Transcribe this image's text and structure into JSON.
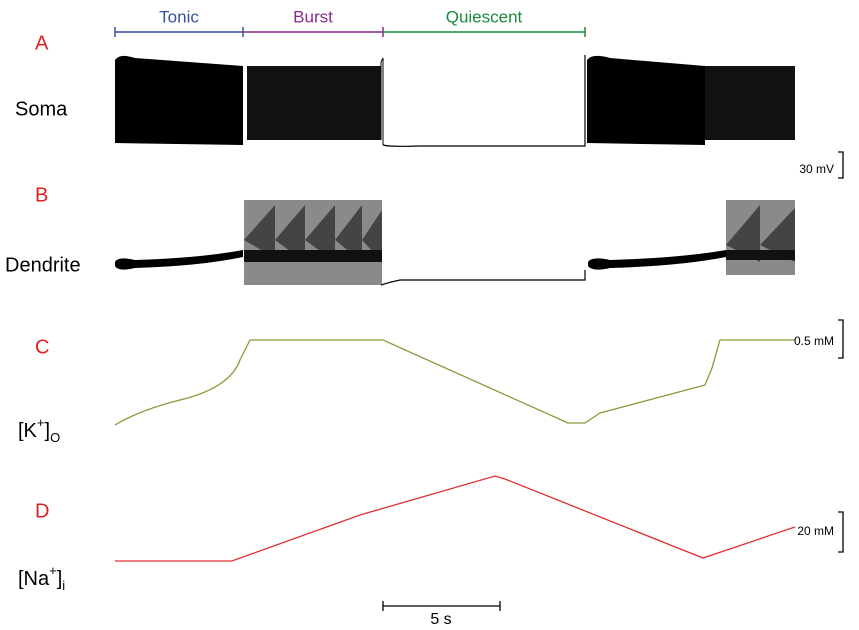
{
  "phases": [
    "Tonic",
    "Burst",
    "Quiescent"
  ],
  "panels": [
    {
      "letter": "A",
      "label": "Soma"
    },
    {
      "letter": "B",
      "label": "Dendrite"
    },
    {
      "letter": "C",
      "label": {
        "base": "[K",
        "sup": "+",
        "close": "]",
        "sub": "O"
      }
    },
    {
      "letter": "D",
      "label": {
        "base": "[Na",
        "sup": "+",
        "close": "]",
        "sub": "i"
      }
    }
  ],
  "scale_bars": [
    "30 mV",
    "0.5 mM",
    "20 mM",
    "5 s"
  ]
}
